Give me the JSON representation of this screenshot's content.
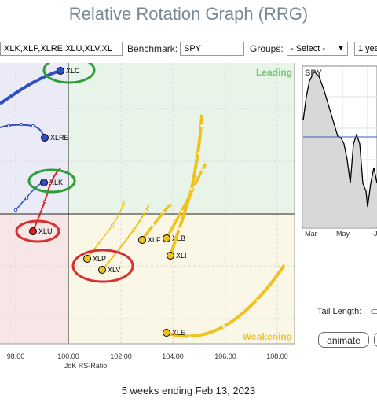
{
  "app": {
    "title": "Relative Rotation Graph (RRG)"
  },
  "toolbar": {
    "symbols_value": "XLK,XLP,XLRE,XLU,XLV,XL",
    "benchmark_label": "Benchmark:",
    "benchmark_value": "SPY",
    "groups_label": "Groups:",
    "groups_value": "- Select -",
    "period_value": "1 yea"
  },
  "quadrants": {
    "leading": "Leading",
    "weakening": "Weakening"
  },
  "colors": {
    "leading_bg": "#e8f4e8",
    "weakening_bg": "#faf7e6",
    "lagging_bg": "#f7e6e6",
    "improving_bg": "#ebebf7",
    "blue_tail": "#2f4fc2",
    "yellow_tail": "#f0c21e",
    "red_tail": "#d82020",
    "highlight_circle_green": "#2e9e3a",
    "highlight_circle_red": "#d83030",
    "benchmark_line": "#3b5bbf"
  },
  "axis": {
    "xlabel": "JdK RS-Ratio",
    "xticks": [
      "98.00",
      "100.00",
      "102.00",
      "104.00",
      "106.00",
      "108.00"
    ]
  },
  "symbols": [
    {
      "name": "XLC"
    },
    {
      "name": "XLRE"
    },
    {
      "name": "XLK"
    },
    {
      "name": "XLU"
    },
    {
      "name": "XLP"
    },
    {
      "name": "XLV"
    },
    {
      "name": "XLF"
    },
    {
      "name": "XLB"
    },
    {
      "name": "XLI"
    },
    {
      "name": "XLE"
    }
  ],
  "mini_chart": {
    "title": "SPY",
    "xticks": [
      "Mar",
      "May",
      "J"
    ]
  },
  "controls": {
    "tail_length_label": "Tail Length:",
    "animate_label": "animate"
  },
  "footer": {
    "text": "5 weeks ending Feb 13, 2023"
  }
}
